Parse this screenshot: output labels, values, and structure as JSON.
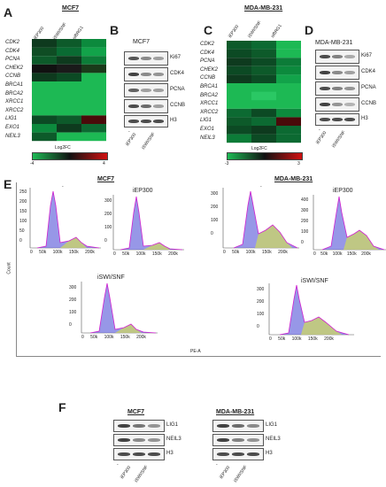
{
  "panels": {
    "A": {
      "letter": "A",
      "title": "MCF7",
      "cols": [
        "iEP300",
        "iSWI/SNF",
        "siBRG1"
      ],
      "rows": [
        "CDK2",
        "CDK4",
        "PCNA",
        "CHEK2",
        "CCNB",
        "BRCA1",
        "BRCA2",
        "XRCC1",
        "XRCC2",
        "LIG1",
        "EXO1",
        "NEIL3"
      ],
      "colorbar": {
        "label": "Log2FC",
        "min": "-4",
        "max": "4"
      }
    },
    "B": {
      "letter": "B",
      "cell": "MCF7",
      "bands": [
        "Ki67",
        "CDK4",
        "PCNA",
        "CCNB",
        "H3"
      ],
      "lanes": [
        "-",
        "iEP300",
        "iSWI/SNF"
      ]
    },
    "C": {
      "letter": "C",
      "title": "MDA-MB-231",
      "cols": [
        "iEP300",
        "iSWI/SNF",
        "siBRG1"
      ],
      "rows": [
        "CDK2",
        "CDK4",
        "PCNA",
        "CHEK2",
        "CCNB",
        "BRCA1",
        "BRCA2",
        "XRCC1",
        "XRCC2",
        "LIG1",
        "EXO1",
        "NEIL3"
      ],
      "colorbar": {
        "label": "Log2FC",
        "min": "-3",
        "max": "3"
      }
    },
    "D": {
      "letter": "D",
      "cell": "MDA-MB-231",
      "bands": [
        "Ki67",
        "CDK4",
        "PCNA",
        "CCNB",
        "H3"
      ],
      "lanes": [
        "-",
        "iEP300",
        "iSWI/SNF"
      ]
    },
    "E": {
      "letter": "E",
      "mcf7": "MCF7",
      "mda": "MDA-MB-231",
      "ylabel": "Count",
      "xlabel": "PE-A",
      "plot_titles": [
        "-",
        "iEP300",
        "iSWI/SNF"
      ],
      "xticks": [
        "0",
        "50k",
        "100k",
        "150k",
        "200k"
      ],
      "yticks_a": [
        "250",
        "200",
        "150",
        "100",
        "50",
        "0"
      ],
      "yticks_b": [
        "300",
        "200",
        "100",
        "0"
      ],
      "yticks_c": [
        "400",
        "300",
        "200",
        "100",
        "0"
      ]
    },
    "F": {
      "letter": "F",
      "mcf7": "MCF7",
      "mda": "MDA-MB-231",
      "bands": [
        "LIG1",
        "NEIL3",
        "H3"
      ],
      "lanes": [
        "-",
        "iEP300",
        "iSWI/SNF"
      ]
    }
  },
  "colors": {
    "green": "#1db954",
    "dark": "#111111",
    "red": "#d01010"
  }
}
